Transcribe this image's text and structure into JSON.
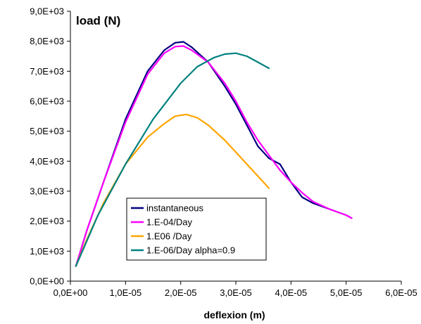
{
  "chart_data": {
    "type": "line",
    "title": "load (N)",
    "xlabel": "deflexion (m)",
    "ylabel": "",
    "xlim": [
      0,
      6e-05
    ],
    "ylim": [
      0,
      9000
    ],
    "x_ticks": [
      0,
      1e-05,
      2e-05,
      3e-05,
      4e-05,
      5e-05,
      6e-05
    ],
    "x_tick_labels": [
      "0,0E+00",
      "1,0E-05",
      "2,0E-05",
      "3,0E-05",
      "4,0E-05",
      "5,0E-05",
      "6,0E-05"
    ],
    "y_ticks": [
      0,
      1000,
      2000,
      3000,
      4000,
      5000,
      6000,
      7000,
      8000,
      9000
    ],
    "y_tick_labels": [
      "0,0E+00",
      "1,0E+03",
      "2,0E+03",
      "3,0E+03",
      "4,0E+03",
      "5,0E+03",
      "6,0E+03",
      "7,0E+03",
      "8,0E+03",
      "9,0E+03"
    ],
    "grid": false,
    "legend_position": "bottom-center",
    "series": [
      {
        "name": "instantaneous",
        "color": "#000080",
        "x": [
          1e-06,
          3e-06,
          6e-06,
          1e-05,
          1.4e-05,
          1.7e-05,
          1.9e-05,
          2.05e-05,
          2.2e-05,
          2.5e-05,
          2.8e-05,
          3e-05,
          3.2e-05,
          3.4e-05,
          3.6e-05,
          3.8e-05,
          4e-05,
          4.2e-05,
          4.4e-05,
          4.7e-05,
          5e-05,
          5.1e-05
        ],
        "y": [
          500,
          1700,
          3300,
          5400,
          7000,
          7700,
          7950,
          7980,
          7800,
          7300,
          6500,
          5900,
          5200,
          4500,
          4100,
          3900,
          3300,
          2800,
          2600,
          2400,
          2200,
          2100
        ]
      },
      {
        "name": "1.E-04/Day",
        "color": "#ff00ff",
        "x": [
          1e-06,
          3e-06,
          6e-06,
          1e-05,
          1.4e-05,
          1.7e-05,
          1.9e-05,
          2.05e-05,
          2.2e-05,
          2.5e-05,
          2.8e-05,
          3e-05,
          3.2e-05,
          3.4e-05,
          3.6e-05,
          3.8e-05,
          4e-05,
          4.2e-05,
          4.4e-05,
          4.7e-05,
          5e-05,
          5.1e-05
        ],
        "y": [
          500,
          1700,
          3300,
          5300,
          6900,
          7600,
          7820,
          7840,
          7700,
          7300,
          6600,
          6000,
          5300,
          4700,
          4200,
          3700,
          3300,
          2950,
          2650,
          2400,
          2200,
          2100
        ]
      },
      {
        "name": "1.E06 /Day",
        "color": "#ffa500",
        "x": [
          1e-06,
          3e-06,
          6e-06,
          1e-05,
          1.4e-05,
          1.7e-05,
          1.9e-05,
          2.1e-05,
          2.3e-05,
          2.5e-05,
          2.8e-05,
          3e-05,
          3.3e-05,
          3.6e-05
        ],
        "y": [
          500,
          1400,
          2600,
          3900,
          4800,
          5250,
          5500,
          5560,
          5450,
          5200,
          4700,
          4300,
          3700,
          3100
        ]
      },
      {
        "name": "1.E-06/Day alpha=0.9",
        "color": "#008080",
        "x": [
          1e-06,
          5e-06,
          1e-05,
          1.5e-05,
          2e-05,
          2.3e-05,
          2.6e-05,
          2.8e-05,
          3e-05,
          3.2e-05,
          3.4e-05,
          3.6e-05
        ],
        "y": [
          500,
          2200,
          3900,
          5400,
          6600,
          7150,
          7450,
          7570,
          7600,
          7500,
          7300,
          7100
        ]
      }
    ]
  }
}
